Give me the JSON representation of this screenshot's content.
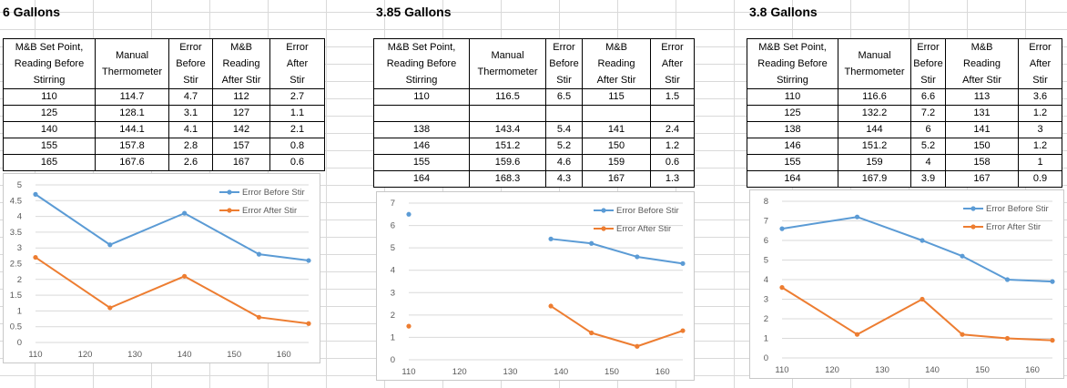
{
  "headers": [
    "M&B Set Point,\nReading Before\nStirring",
    "Manual\nThermometer",
    "Error\nBefore\nStir",
    "M&B\nReading\nAfter Stir",
    "Error\nAfter\nStir"
  ],
  "colors": {
    "before": "#5b9bd5",
    "after": "#ed7d31"
  },
  "panels": [
    {
      "title": "6 Gallons",
      "rows": [
        [
          "110",
          "114.7",
          "4.7",
          "112",
          "2.7"
        ],
        [
          "125",
          "128.1",
          "3.1",
          "127",
          "1.1"
        ],
        [
          "140",
          "144.1",
          "4.1",
          "142",
          "2.1"
        ],
        [
          "155",
          "157.8",
          "2.8",
          "157",
          "0.8"
        ],
        [
          "165",
          "167.6",
          "2.6",
          "167",
          "0.6"
        ]
      ]
    },
    {
      "title": "3.85 Gallons",
      "rows": [
        [
          "110",
          "116.5",
          "6.5",
          "115",
          "1.5"
        ],
        [
          "",
          "",
          "",
          "",
          ""
        ],
        [
          "138",
          "143.4",
          "5.4",
          "141",
          "2.4"
        ],
        [
          "146",
          "151.2",
          "5.2",
          "150",
          "1.2"
        ],
        [
          "155",
          "159.6",
          "4.6",
          "159",
          "0.6"
        ],
        [
          "164",
          "168.3",
          "4.3",
          "167",
          "1.3"
        ]
      ]
    },
    {
      "title": "3.8 Gallons",
      "rows": [
        [
          "110",
          "116.6",
          "6.6",
          "113",
          "3.6"
        ],
        [
          "125",
          "132.2",
          "7.2",
          "131",
          "1.2"
        ],
        [
          "138",
          "144",
          "6",
          "141",
          "3"
        ],
        [
          "146",
          "151.2",
          "5.2",
          "150",
          "1.2"
        ],
        [
          "155",
          "159",
          "4",
          "158",
          "1"
        ],
        [
          "164",
          "167.9",
          "3.9",
          "167",
          "0.9"
        ]
      ]
    }
  ],
  "chart_data": [
    {
      "type": "line",
      "xlim": [
        110,
        165
      ],
      "ylim": [
        0,
        5
      ],
      "xticks": [
        110,
        120,
        130,
        140,
        150,
        160
      ],
      "yticks": [
        0,
        0.5,
        1,
        1.5,
        2,
        2.5,
        3,
        3.5,
        4,
        4.5,
        5
      ],
      "legend": "top-right",
      "series": [
        {
          "name": "Error Before Stir",
          "color": "#5b9bd5",
          "x": [
            110,
            125,
            140,
            155,
            165
          ],
          "y": [
            4.7,
            3.1,
            4.1,
            2.8,
            2.6
          ]
        },
        {
          "name": "Error After Stir",
          "color": "#ed7d31",
          "x": [
            110,
            125,
            140,
            155,
            165
          ],
          "y": [
            2.7,
            1.1,
            2.1,
            0.8,
            0.6
          ]
        }
      ]
    },
    {
      "type": "line",
      "xlim": [
        110,
        164
      ],
      "ylim": [
        0,
        7
      ],
      "xticks": [
        110,
        120,
        130,
        140,
        150,
        160
      ],
      "yticks": [
        0,
        1,
        2,
        3,
        4,
        5,
        6,
        7
      ],
      "legend": "top-right",
      "series": [
        {
          "name": "Error Before Stir",
          "color": "#5b9bd5",
          "x": [
            110,
            138,
            146,
            155,
            164
          ],
          "y": [
            6.5,
            5.4,
            5.2,
            4.6,
            4.3
          ],
          "segments": [
            [
              0
            ],
            [
              1,
              2,
              3,
              4
            ]
          ]
        },
        {
          "name": "Error After Stir",
          "color": "#ed7d31",
          "x": [
            110,
            138,
            146,
            155,
            164
          ],
          "y": [
            1.5,
            2.4,
            1.2,
            0.6,
            1.3
          ],
          "segments": [
            [
              0
            ],
            [
              1,
              2,
              3,
              4
            ]
          ]
        }
      ]
    },
    {
      "type": "line",
      "xlim": [
        110,
        164
      ],
      "ylim": [
        0,
        8
      ],
      "xticks": [
        110,
        120,
        130,
        140,
        150,
        160
      ],
      "yticks": [
        0,
        1,
        2,
        3,
        4,
        5,
        6,
        7,
        8
      ],
      "legend": "top-right",
      "series": [
        {
          "name": "Error Before Stir",
          "color": "#5b9bd5",
          "x": [
            110,
            125,
            138,
            146,
            155,
            164
          ],
          "y": [
            6.6,
            7.2,
            6,
            5.2,
            4,
            3.9
          ]
        },
        {
          "name": "Error After Stir",
          "color": "#ed7d31",
          "x": [
            110,
            125,
            138,
            146,
            155,
            164
          ],
          "y": [
            3.6,
            1.2,
            3,
            1.2,
            1,
            0.9
          ]
        }
      ]
    }
  ]
}
